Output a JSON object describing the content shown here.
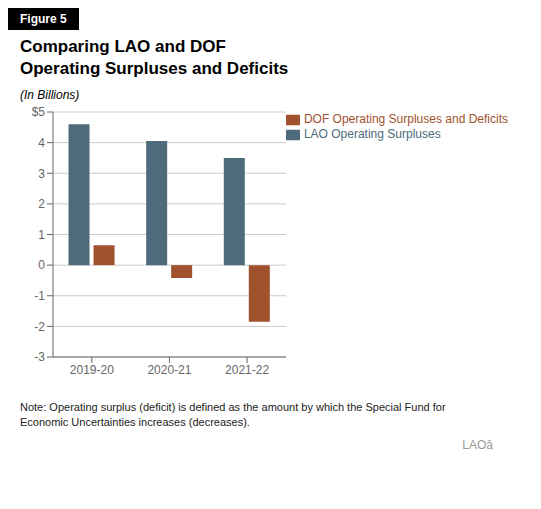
{
  "chart_data": {
    "type": "bar",
    "title": "Comparing LAO and DOF\nOperating Surpluses and Deficits",
    "subtitle": "(In Billions)",
    "annotations": [
      "Figure 5",
      "Note: Operating surplus (deficit) is defined as the amount by which the Special Fund for\nEconomic Uncertainties increases (decreases).",
      "LAOâ"
    ],
    "categories": [
      "2019-20",
      "2020-21",
      "2021-22"
    ],
    "series": [
      {
        "name": "LAO Operating Surpluses",
        "color": "#4d6b7a",
        "values": [
          4.6,
          4.05,
          3.5
        ]
      },
      {
        "name": "DOF Operating Surpluses and Deficits",
        "color": "#a0522d",
        "values": [
          0.65,
          -0.42,
          -1.85
        ]
      }
    ],
    "ylim": [
      -3,
      5
    ],
    "yticks": [
      -3,
      -2,
      -1,
      0,
      1,
      2,
      3,
      4,
      {
        "value": 5,
        "label": "$5"
      }
    ],
    "grid": true,
    "legend": "upper right"
  }
}
